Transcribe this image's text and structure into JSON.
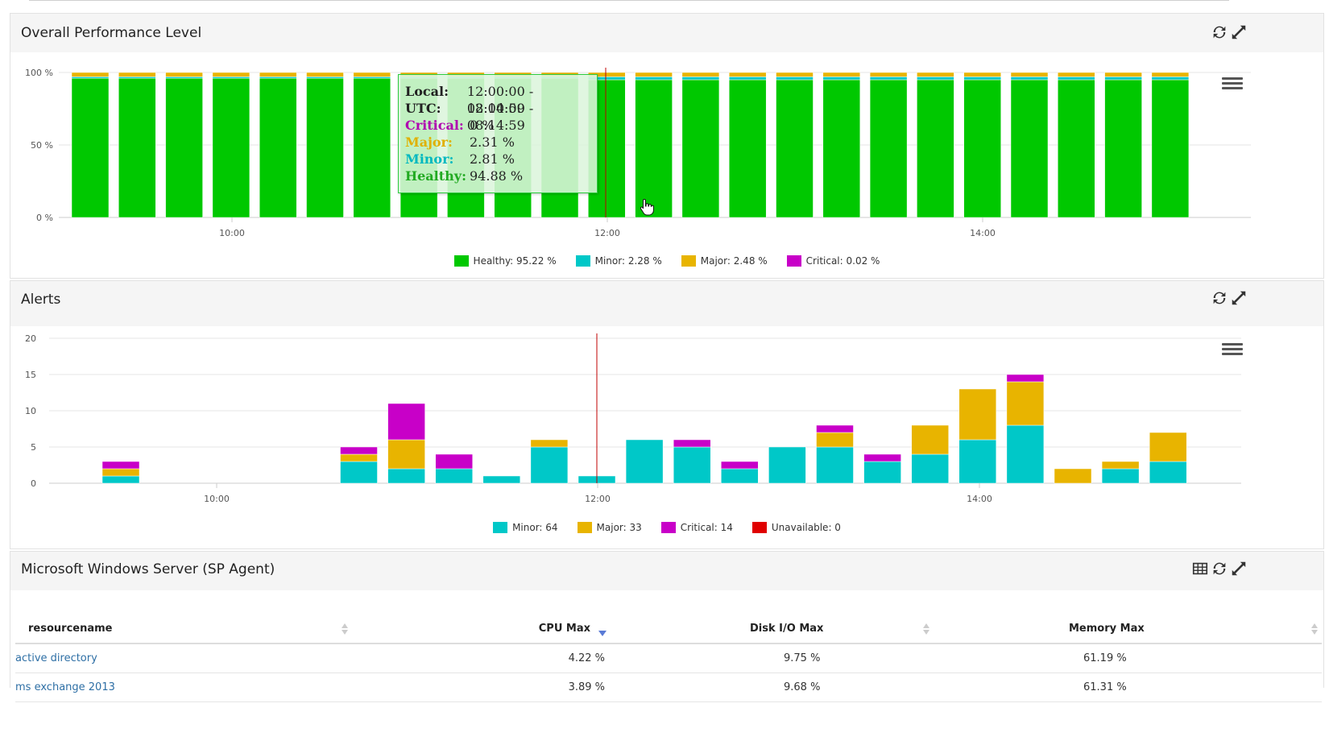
{
  "perf_panel": {
    "title": "Overall Performance Level",
    "y_ticks": [
      "100 %",
      "50 %",
      "0 %"
    ],
    "x_ticks": [
      "10:00",
      "12:00",
      "14:00"
    ],
    "legend": [
      {
        "label": "Healthy: 95.22 %",
        "color": "#00c800"
      },
      {
        "label": "Minor: 2.28 %",
        "color": "#00c8c8"
      },
      {
        "label": "Major: 2.48 %",
        "color": "#e8b400"
      },
      {
        "label": "Critical: 0.02 %",
        "color": "#c800c8"
      }
    ],
    "tooltip": {
      "rows": [
        {
          "key": "Local:",
          "value": "12:00:00 - 12:14:59",
          "color": "#222222"
        },
        {
          "key": "UTC:",
          "value": "08:00:00 - 08:14:59",
          "color": "#222222"
        },
        {
          "key": "Critical:",
          "value": "0 %",
          "color": "#b000b0"
        },
        {
          "key": "Major:",
          "value": "2.31 %",
          "color": "#e0b000"
        },
        {
          "key": "Minor:",
          "value": "2.81 %",
          "color": "#00b8c0"
        },
        {
          "key": "Healthy:",
          "value": "94.88 %",
          "color": "#22aa22"
        }
      ]
    }
  },
  "alerts_panel": {
    "title": "Alerts",
    "y_ticks": [
      "20",
      "15",
      "10",
      "5",
      "0"
    ],
    "x_ticks": [
      "10:00",
      "12:00",
      "14:00"
    ],
    "legend": [
      {
        "label": "Minor: 64",
        "color": "#00c8c8"
      },
      {
        "label": "Major: 33",
        "color": "#e8b400"
      },
      {
        "label": "Critical: 14",
        "color": "#c800c8"
      },
      {
        "label": "Unavailable: 0",
        "color": "#e00000"
      }
    ]
  },
  "table_panel": {
    "title": "Microsoft Windows Server (SP Agent)",
    "columns": [
      "resourcename",
      "CPU Max",
      "Disk I/O Max",
      "Memory Max"
    ],
    "rows": [
      [
        "active directory",
        "4.22 %",
        "9.75 %",
        "61.19 %"
      ],
      [
        "ms exchange 2013",
        "3.89 %",
        "9.68 %",
        "61.31 %"
      ]
    ]
  },
  "chart_data": [
    {
      "type": "bar",
      "stacked": true,
      "title": "Overall Performance Level",
      "ylim": [
        0,
        100
      ],
      "x_ticks": [
        "10:00",
        "12:00",
        "14:00"
      ],
      "bar_count": 24,
      "series": [
        {
          "name": "Healthy",
          "color": "#00c800",
          "values": [
            96,
            96,
            96,
            96,
            96,
            96,
            96,
            96,
            96,
            96,
            96,
            95,
            95,
            95,
            95,
            95,
            95,
            95,
            95,
            95,
            95,
            95,
            95,
            95
          ]
        },
        {
          "name": "Minor",
          "color": "#00c8c8",
          "values": [
            1,
            1,
            1,
            1,
            1,
            1,
            1,
            1,
            1,
            1,
            1,
            2,
            2,
            2,
            2,
            2,
            2,
            2,
            2,
            2,
            2,
            2,
            2,
            2
          ]
        },
        {
          "name": "Major",
          "color": "#e8b400",
          "values": [
            3,
            3,
            3,
            3,
            3,
            3,
            3,
            3,
            3,
            3,
            3,
            3,
            3,
            3,
            3,
            3,
            3,
            3,
            3,
            3,
            3,
            3,
            3,
            3
          ]
        },
        {
          "name": "Critical",
          "color": "#c800c8",
          "values": [
            0,
            0,
            0,
            0,
            0,
            0,
            0,
            0,
            0,
            0,
            0,
            0,
            0,
            0,
            0,
            0,
            0,
            0,
            0,
            0,
            0,
            0,
            0,
            0
          ]
        }
      ]
    },
    {
      "type": "bar",
      "stacked": true,
      "title": "Alerts",
      "ylim": [
        0,
        20
      ],
      "x_ticks": [
        "10:00",
        "12:00",
        "14:00"
      ],
      "bar_count": 24,
      "series": [
        {
          "name": "Minor",
          "color": "#00c8c8",
          "values": [
            1,
            0,
            0,
            0,
            0,
            3,
            2,
            2,
            1,
            5,
            1,
            6,
            5,
            2,
            5,
            5,
            3,
            4,
            6,
            8,
            0,
            2,
            3,
            0
          ]
        },
        {
          "name": "Major",
          "color": "#e8b400",
          "values": [
            1,
            0,
            0,
            0,
            0,
            1,
            4,
            0,
            0,
            1,
            0,
            0,
            0,
            0,
            0,
            2,
            0,
            4,
            7,
            6,
            2,
            1,
            4,
            0
          ]
        },
        {
          "name": "Critical",
          "color": "#c800c8",
          "values": [
            1,
            0,
            0,
            0,
            0,
            1,
            5,
            2,
            0,
            0,
            0,
            0,
            1,
            1,
            0,
            1,
            1,
            0,
            0,
            1,
            0,
            0,
            0,
            0
          ]
        },
        {
          "name": "Unavailable",
          "color": "#e00000",
          "values": [
            0,
            0,
            0,
            0,
            0,
            0,
            0,
            0,
            0,
            0,
            0,
            0,
            0,
            0,
            0,
            0,
            0,
            0,
            0,
            0,
            0,
            0,
            0,
            0
          ]
        }
      ]
    }
  ]
}
